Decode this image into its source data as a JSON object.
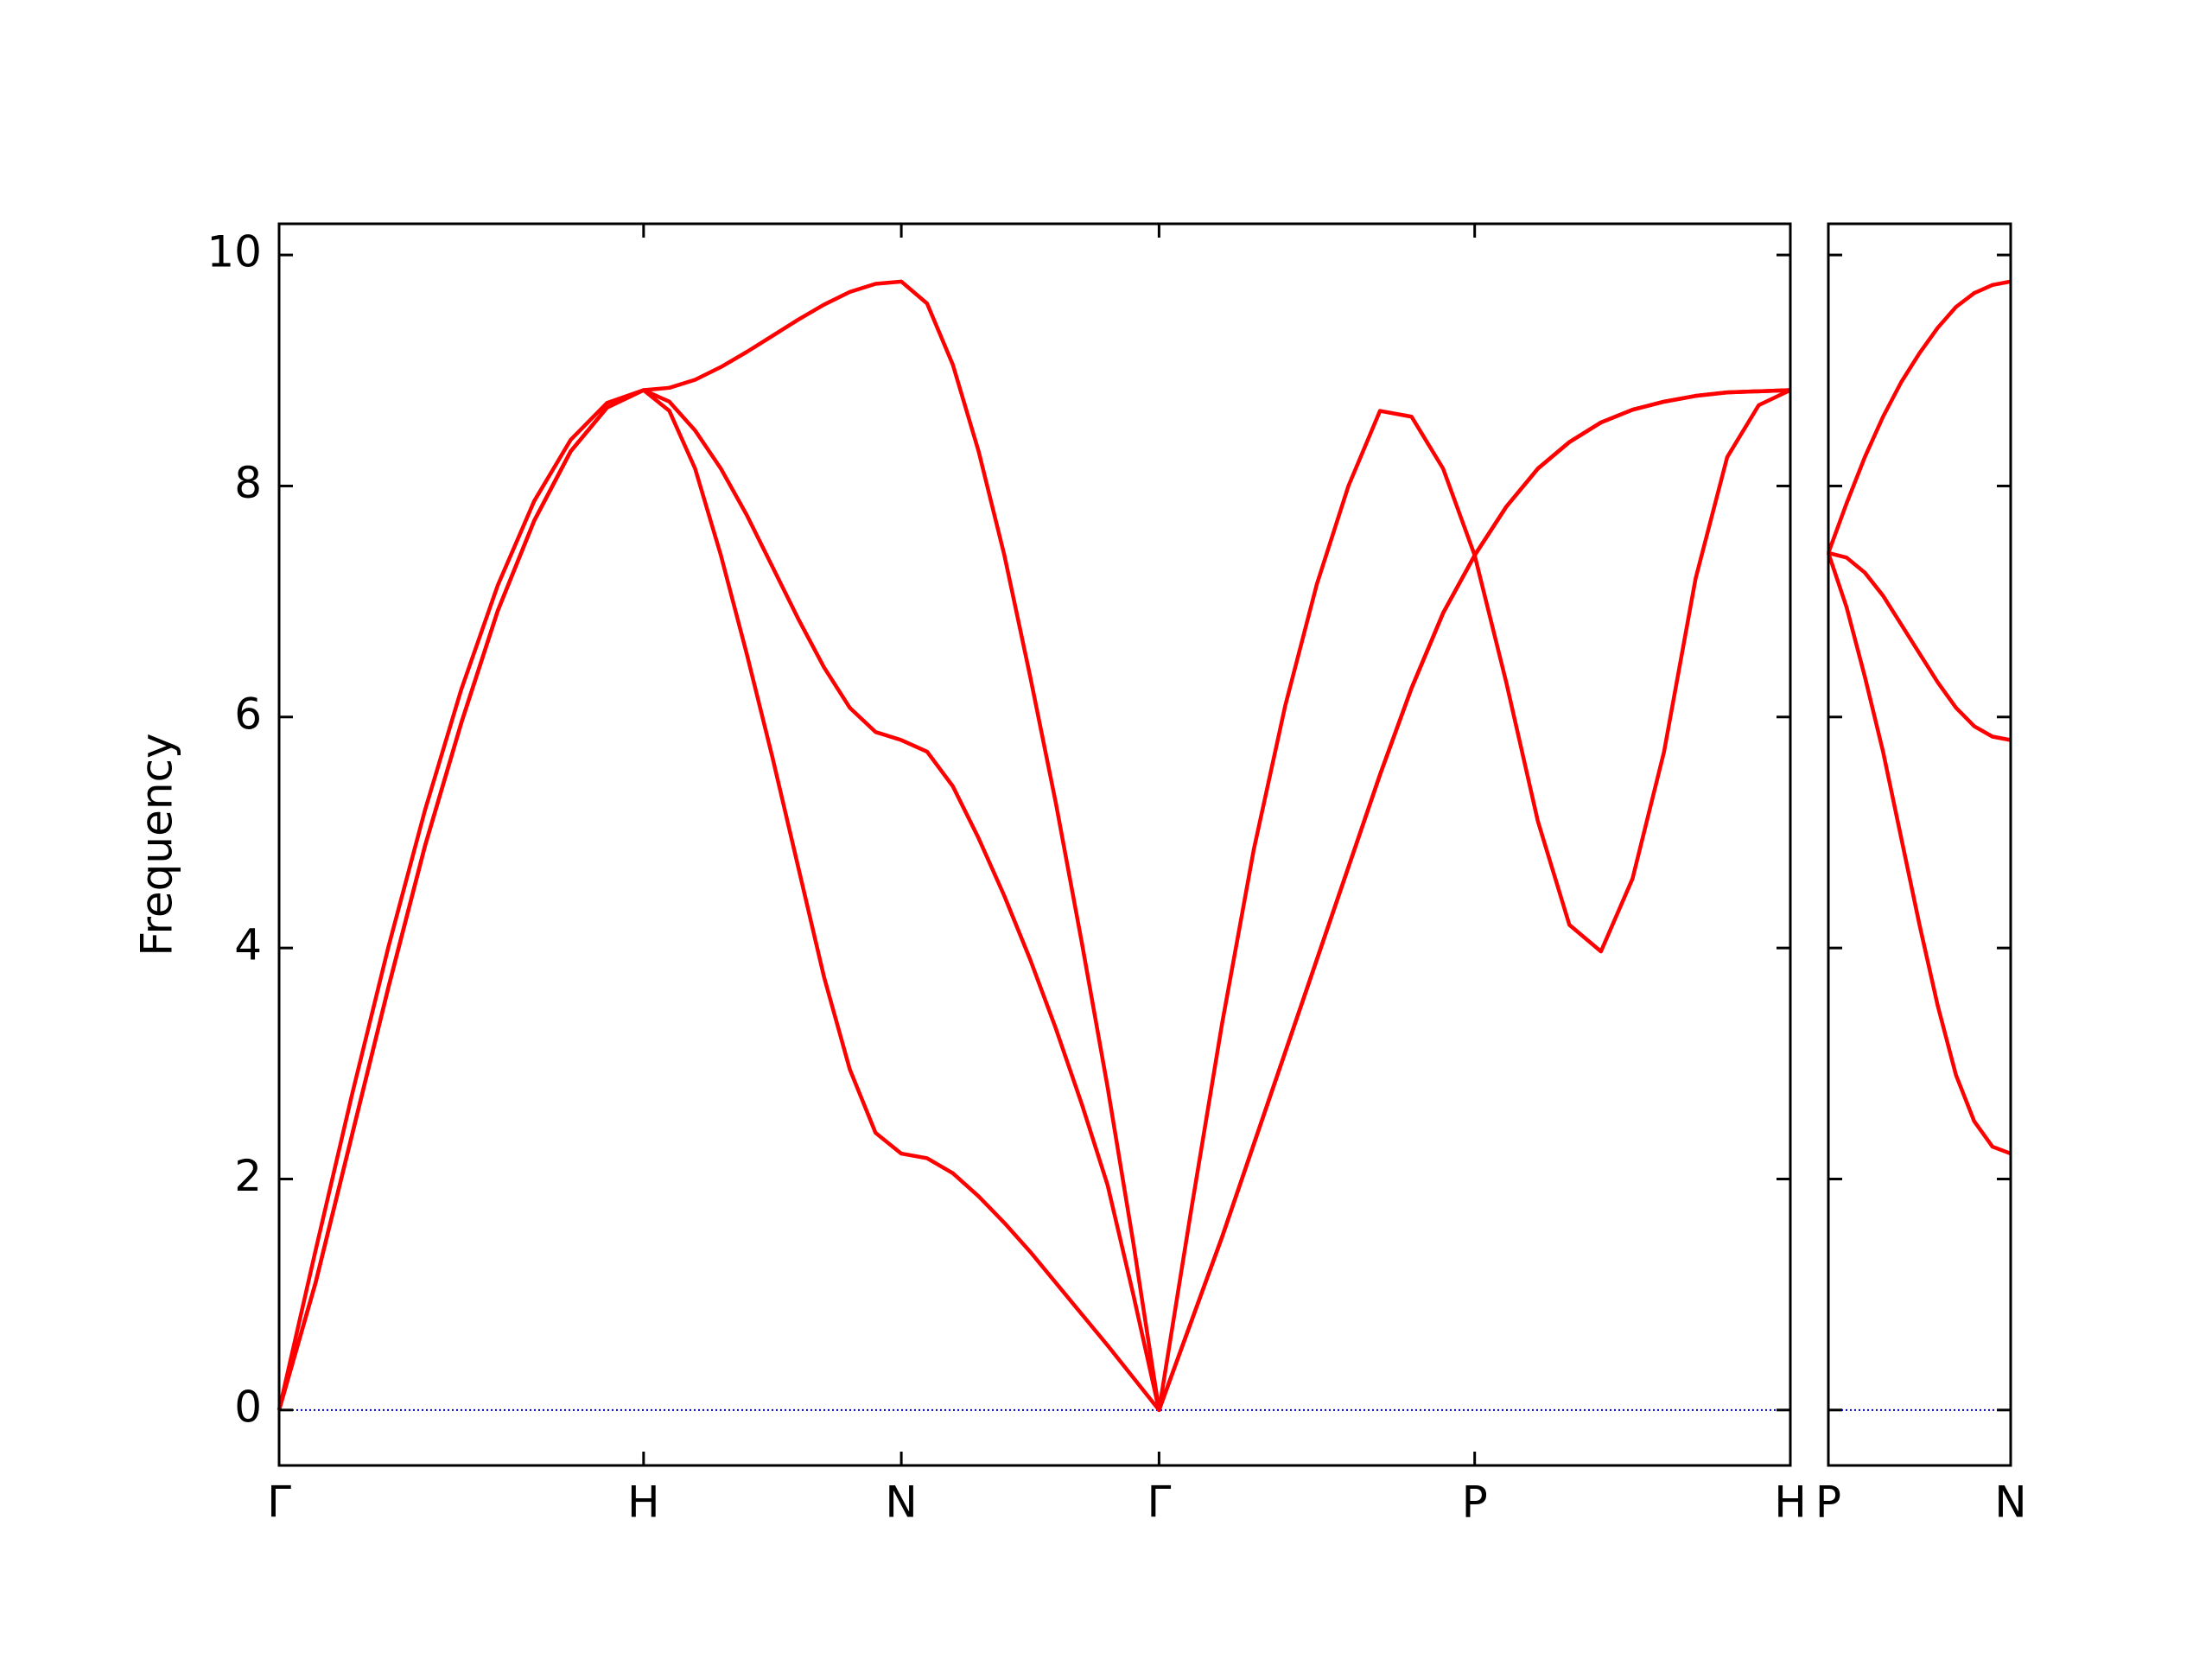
{
  "chart_data": [
    {
      "type": "line",
      "ylabel": "Frequency",
      "x": [
        0,
        0.1,
        0.2,
        0.3,
        0.4,
        0.5,
        0.6,
        0.7,
        0.8,
        0.9,
        1.0,
        1.0707,
        1.1414,
        1.2121,
        1.2828,
        1.3536,
        1.4243,
        1.495,
        1.5657,
        1.6364,
        1.7071,
        1.7778,
        1.8485,
        1.9192,
        1.9899,
        2.0607,
        2.1314,
        2.2021,
        2.2728,
        2.3435,
        2.4142,
        2.5008,
        2.5874,
        2.674,
        2.7606,
        2.8472,
        2.9338,
        3.0204,
        3.107,
        3.1936,
        3.2802,
        3.3668,
        3.4534,
        3.54,
        3.6266,
        3.7132,
        3.7998,
        3.8864,
        3.973,
        4.0596,
        4.1462
      ],
      "series": [
        {
          "color": "#ff0000",
          "values": [
            0,
            1.1,
            2.38,
            3.66,
            4.88,
            5.95,
            6.92,
            7.7,
            8.3,
            8.68,
            8.83,
            8.65,
            8.15,
            7.4,
            6.55,
            5.65,
            4.7,
            3.75,
            2.95,
            2.4,
            2.22,
            2.18,
            2.05,
            1.85,
            1.62,
            1.37,
            1.1,
            0.83,
            0.56,
            0.28,
            0,
            0.75,
            1.5,
            2.3,
            3.1,
            3.9,
            4.7,
            5.5,
            6.25,
            6.9,
            7.4,
            6.3,
            5.1,
            4.2,
            3.97,
            4.6,
            5.7,
            7.2,
            8.25,
            8.7,
            8.83
          ]
        },
        {
          "color": "#ff0000",
          "values": [
            0,
            1.1,
            2.38,
            3.66,
            4.88,
            5.95,
            6.92,
            7.7,
            8.3,
            8.68,
            8.83,
            8.73,
            8.48,
            8.15,
            7.75,
            7.3,
            6.85,
            6.43,
            6.08,
            5.87,
            5.8,
            5.7,
            5.4,
            4.95,
            4.45,
            3.9,
            3.3,
            2.65,
            1.95,
            1.0,
            0,
            0.75,
            1.5,
            2.3,
            3.1,
            3.9,
            4.7,
            5.5,
            6.25,
            6.9,
            7.4,
            7.82,
            8.15,
            8.38,
            8.55,
            8.66,
            8.73,
            8.78,
            8.81,
            8.82,
            8.83
          ]
        },
        {
          "color": "#ff0000",
          "values": [
            0,
            1.38,
            2.73,
            4.01,
            5.19,
            6.24,
            7.14,
            7.87,
            8.4,
            8.72,
            8.83,
            8.85,
            8.92,
            9.03,
            9.16,
            9.3,
            9.44,
            9.57,
            9.68,
            9.75,
            9.77,
            9.58,
            9.05,
            8.3,
            7.4,
            6.35,
            5.25,
            4.05,
            2.8,
            1.45,
            0,
            1.7,
            3.35,
            4.85,
            6.1,
            7.15,
            8.0,
            8.65,
            8.6,
            8.15,
            7.4,
            7.82,
            8.15,
            8.38,
            8.55,
            8.66,
            8.73,
            8.78,
            8.81,
            8.82,
            8.83
          ]
        }
      ],
      "xlim": [
        0,
        4.1462
      ],
      "xticks": [
        {
          "value": 0,
          "label": "Γ"
        },
        {
          "value": 1.0,
          "label": "H"
        },
        {
          "value": 1.7071,
          "label": "N"
        },
        {
          "value": 2.4142,
          "label": "Γ"
        },
        {
          "value": 3.2802,
          "label": "P"
        },
        {
          "value": 4.1462,
          "label": "H"
        }
      ],
      "ylim": [
        -0.48,
        10.27
      ],
      "yticks": [
        0,
        2,
        4,
        6,
        8,
        10
      ],
      "hline": 0,
      "hline_color": "#0000cc"
    },
    {
      "type": "line",
      "x": [
        0,
        0.05,
        0.1,
        0.15,
        0.2,
        0.25,
        0.3,
        0.35,
        0.4,
        0.45,
        0.5
      ],
      "series": [
        {
          "color": "#ff0000",
          "values": [
            7.42,
            6.95,
            6.35,
            5.7,
            4.95,
            4.2,
            3.5,
            2.9,
            2.5,
            2.28,
            2.22
          ]
        },
        {
          "color": "#ff0000",
          "values": [
            7.42,
            7.38,
            7.25,
            7.05,
            6.8,
            6.55,
            6.3,
            6.08,
            5.92,
            5.83,
            5.8
          ]
        },
        {
          "color": "#ff0000",
          "values": [
            7.42,
            7.85,
            8.25,
            8.6,
            8.9,
            9.15,
            9.37,
            9.55,
            9.67,
            9.74,
            9.77
          ]
        }
      ],
      "xlim": [
        0,
        0.5
      ],
      "xticks": [
        {
          "value": 0,
          "label": "P"
        },
        {
          "value": 0.5,
          "label": "N"
        }
      ],
      "ylim": [
        -0.48,
        10.27
      ],
      "yticks": [
        0,
        2,
        4,
        6,
        8,
        10
      ],
      "show_ytick_labels": false,
      "hline": 0,
      "hline_color": "#0000cc"
    }
  ]
}
